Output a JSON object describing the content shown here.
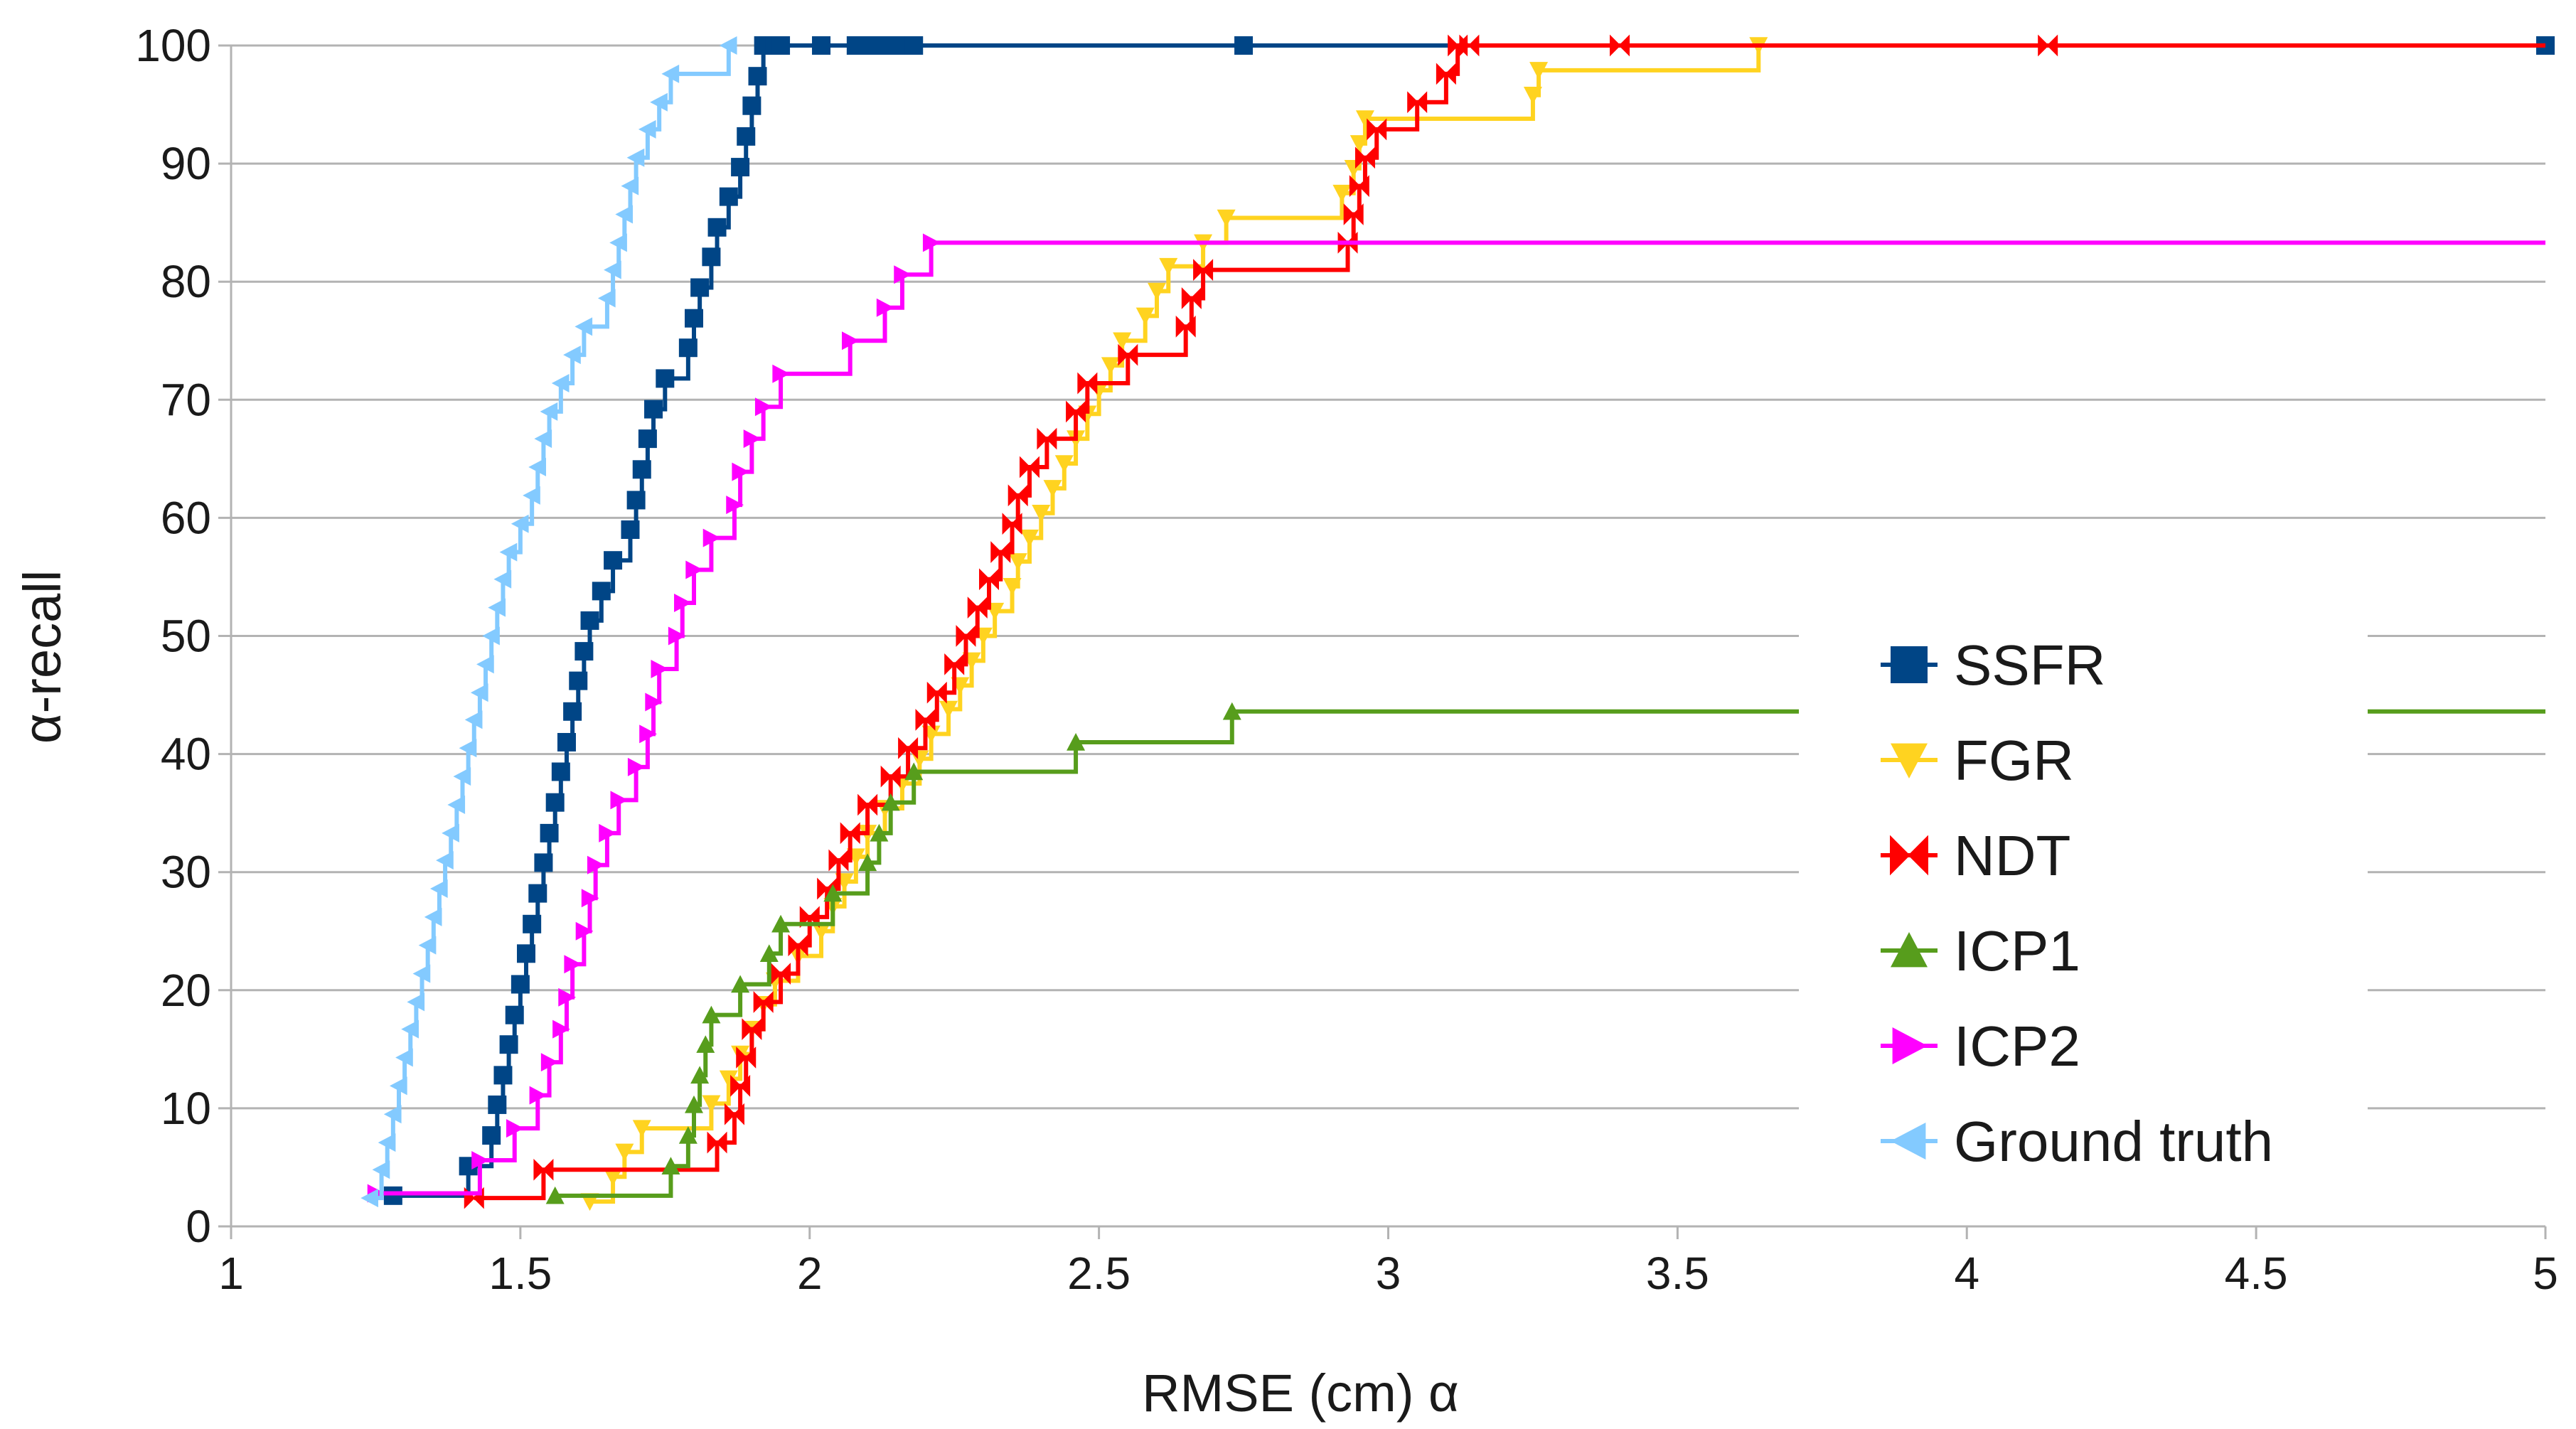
{
  "chart_data": {
    "type": "line",
    "title": "",
    "xlabel": "RMSE (cm) α",
    "ylabel": "α-recall",
    "xlim": [
      1,
      5
    ],
    "ylim": [
      0,
      100
    ],
    "x_ticks": [
      "1",
      "1.5",
      "2",
      "2.5",
      "3",
      "3.5",
      "4",
      "4.5",
      "5"
    ],
    "y_ticks": [
      "0",
      "10",
      "20",
      "30",
      "40",
      "50",
      "60",
      "70",
      "80",
      "90",
      "100"
    ],
    "grid": "horizontal",
    "legend_position": "right",
    "series": [
      {
        "name": "SSFR",
        "color": "#004586",
        "marker": "square",
        "x": [
          1.28,
          1.41,
          1.45,
          1.46,
          1.47,
          1.48,
          1.49,
          1.5,
          1.51,
          1.52,
          1.53,
          1.54,
          1.55,
          1.56,
          1.57,
          1.58,
          1.59,
          1.6,
          1.61,
          1.62,
          1.64,
          1.66,
          1.69,
          1.7,
          1.71,
          1.72,
          1.73,
          1.75,
          1.79,
          1.8,
          1.81,
          1.83,
          1.84,
          1.86,
          1.88,
          1.89,
          1.9,
          1.91,
          1.92,
          1.93,
          1.94,
          1.95,
          2.02,
          2.08,
          2.1,
          2.12,
          2.14,
          2.15,
          2.17,
          2.18,
          2.75,
          5.0
        ],
        "y": [
          2.6,
          5.1,
          7.7,
          10.3,
          12.8,
          15.4,
          17.9,
          20.5,
          23.1,
          25.6,
          28.2,
          30.8,
          33.3,
          35.9,
          38.5,
          41.0,
          43.6,
          46.2,
          48.7,
          51.3,
          53.8,
          56.4,
          59.0,
          61.5,
          64.1,
          66.7,
          69.2,
          71.8,
          74.4,
          76.9,
          79.5,
          82.1,
          84.6,
          87.2,
          89.7,
          92.3,
          94.9,
          97.4,
          100,
          100,
          100,
          100,
          100,
          100,
          100,
          100,
          100,
          100,
          100,
          100,
          100,
          100
        ]
      },
      {
        "name": "FGR",
        "color": "#ffd320",
        "marker": "triangle-down",
        "x": [
          1.62,
          1.66,
          1.68,
          1.71,
          1.83,
          1.86,
          1.88,
          1.9,
          1.92,
          1.94,
          1.98,
          2.02,
          2.04,
          2.06,
          2.08,
          2.1,
          2.13,
          2.16,
          2.19,
          2.21,
          2.24,
          2.26,
          2.28,
          2.3,
          2.32,
          2.35,
          2.36,
          2.38,
          2.4,
          2.42,
          2.44,
          2.46,
          2.48,
          2.5,
          2.52,
          2.54,
          2.58,
          2.6,
          2.62,
          2.68,
          2.72,
          2.92,
          2.94,
          2.95,
          2.96,
          3.25,
          3.26,
          3.64
        ],
        "y": [
          2.1,
          4.2,
          6.3,
          8.3,
          10.4,
          12.5,
          14.6,
          16.7,
          18.8,
          20.8,
          22.9,
          25.0,
          27.1,
          29.2,
          31.3,
          33.3,
          35.4,
          37.5,
          39.6,
          41.7,
          43.8,
          45.8,
          47.9,
          50.0,
          52.1,
          54.2,
          56.3,
          58.3,
          60.4,
          62.5,
          64.6,
          66.7,
          68.8,
          70.8,
          72.9,
          75.0,
          77.1,
          79.2,
          81.3,
          83.3,
          85.4,
          87.5,
          89.6,
          91.7,
          93.8,
          95.8,
          97.9,
          100
        ]
      },
      {
        "name": "NDT",
        "color": "#ff0000",
        "marker": "bowtie",
        "x": [
          1.42,
          1.54,
          1.84,
          1.87,
          1.88,
          1.89,
          1.9,
          1.92,
          1.95,
          1.98,
          2.0,
          2.03,
          2.05,
          2.07,
          2.1,
          2.14,
          2.17,
          2.2,
          2.22,
          2.25,
          2.27,
          2.29,
          2.31,
          2.33,
          2.35,
          2.36,
          2.38,
          2.41,
          2.46,
          2.48,
          2.55,
          2.65,
          2.66,
          2.68,
          2.93,
          2.94,
          2.95,
          2.96,
          2.98,
          3.05,
          3.1,
          3.12,
          3.14,
          3.4,
          4.14
        ],
        "y": [
          2.4,
          4.8,
          7.1,
          9.5,
          11.9,
          14.3,
          16.7,
          19.0,
          21.4,
          23.8,
          26.2,
          28.6,
          31.0,
          33.3,
          35.7,
          38.1,
          40.5,
          42.9,
          45.2,
          47.6,
          50.0,
          52.4,
          54.8,
          57.1,
          59.5,
          61.9,
          64.3,
          66.7,
          69.0,
          71.4,
          73.8,
          76.2,
          78.6,
          81.0,
          83.3,
          85.7,
          88.1,
          90.5,
          92.9,
          95.2,
          97.6,
          100,
          100,
          100,
          100
        ]
      },
      {
        "name": "ICP1",
        "color": "#579d1c",
        "marker": "triangle-up",
        "x": [
          1.56,
          1.76,
          1.79,
          1.8,
          1.81,
          1.82,
          1.83,
          1.88,
          1.93,
          1.95,
          2.04,
          2.1,
          2.12,
          2.14,
          2.18,
          2.46,
          2.73
        ],
        "y": [
          2.6,
          5.1,
          7.7,
          10.3,
          12.8,
          15.4,
          17.9,
          20.5,
          23.1,
          25.6,
          28.2,
          30.8,
          33.3,
          35.9,
          38.5,
          41.0,
          43.6
        ]
      },
      {
        "name": "ICP2",
        "color": "#ff00ff",
        "marker": "triangle-right",
        "x": [
          1.25,
          1.43,
          1.49,
          1.53,
          1.55,
          1.57,
          1.58,
          1.59,
          1.61,
          1.62,
          1.63,
          1.65,
          1.67,
          1.7,
          1.72,
          1.73,
          1.74,
          1.77,
          1.78,
          1.8,
          1.83,
          1.87,
          1.88,
          1.9,
          1.92,
          1.95,
          2.07,
          2.13,
          2.16,
          2.21
        ],
        "y": [
          2.8,
          5.6,
          8.3,
          11.1,
          13.9,
          16.7,
          19.4,
          22.2,
          25.0,
          27.8,
          30.6,
          33.3,
          36.1,
          38.9,
          41.7,
          44.4,
          47.2,
          50.0,
          52.8,
          55.6,
          58.3,
          61.1,
          63.9,
          66.7,
          69.4,
          72.2,
          75.0,
          77.8,
          80.6,
          83.3
        ]
      },
      {
        "name": "Ground truth",
        "color": "#83caff",
        "marker": "triangle-left",
        "x": [
          1.24,
          1.26,
          1.27,
          1.28,
          1.29,
          1.3,
          1.31,
          1.32,
          1.33,
          1.34,
          1.35,
          1.36,
          1.37,
          1.38,
          1.39,
          1.4,
          1.41,
          1.42,
          1.43,
          1.44,
          1.45,
          1.46,
          1.47,
          1.48,
          1.5,
          1.52,
          1.53,
          1.54,
          1.55,
          1.57,
          1.59,
          1.61,
          1.65,
          1.66,
          1.67,
          1.68,
          1.69,
          1.7,
          1.72,
          1.74,
          1.76,
          1.86
        ],
        "y": [
          2.4,
          4.8,
          7.1,
          9.5,
          11.9,
          14.3,
          16.7,
          19.0,
          21.4,
          23.8,
          26.2,
          28.6,
          31.0,
          33.3,
          35.7,
          38.1,
          40.5,
          42.9,
          45.2,
          47.6,
          50.0,
          52.4,
          54.8,
          57.1,
          59.5,
          61.9,
          64.3,
          66.7,
          69.0,
          71.4,
          73.8,
          76.2,
          78.6,
          81.0,
          83.3,
          85.7,
          88.1,
          90.5,
          92.9,
          95.2,
          97.6,
          100
        ]
      }
    ],
    "extend_to_x": 5
  }
}
